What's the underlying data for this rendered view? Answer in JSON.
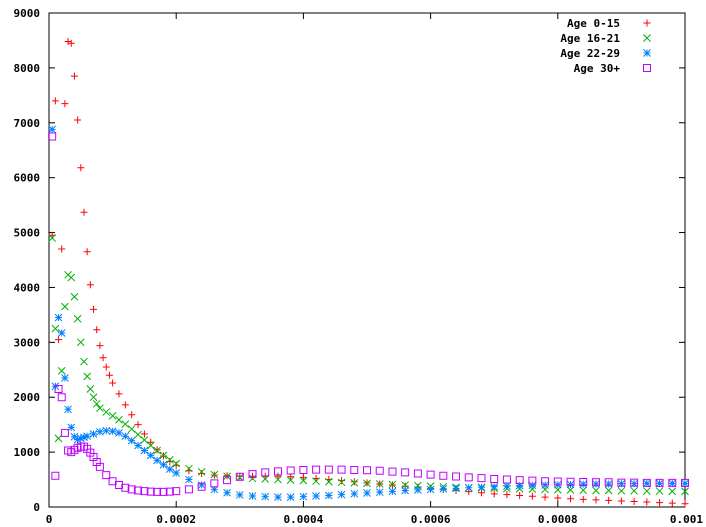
{
  "chart_data": {
    "type": "scatter",
    "title": "",
    "xlabel": "",
    "ylabel": "",
    "xlim": [
      0,
      0.001
    ],
    "ylim": [
      0,
      9000
    ],
    "grid": false,
    "legend_position": "top-right",
    "x_ticks": [
      "0",
      "0.0002",
      "0.0004",
      "0.0006",
      "0.0008",
      "0.001"
    ],
    "x_tick_values": [
      0,
      0.0002,
      0.0004,
      0.0006,
      0.0008,
      0.001
    ],
    "y_ticks": [
      "0",
      "1000",
      "2000",
      "3000",
      "4000",
      "5000",
      "6000",
      "7000",
      "8000",
      "9000"
    ],
    "y_tick_values": [
      0,
      1000,
      2000,
      3000,
      4000,
      5000,
      6000,
      7000,
      8000,
      9000
    ],
    "series": [
      {
        "name": "Age 0-15",
        "color": "#ff0000",
        "marker": "plus",
        "points": [
          [
            5e-06,
            4950
          ],
          [
            1e-05,
            7400
          ],
          [
            1.5e-05,
            3050
          ],
          [
            2e-05,
            4700
          ],
          [
            2.5e-05,
            7350
          ],
          [
            3e-05,
            8480
          ],
          [
            3.5e-05,
            8450
          ],
          [
            4e-05,
            7850
          ],
          [
            4.5e-05,
            7050
          ],
          [
            5e-05,
            6180
          ],
          [
            5.5e-05,
            5370
          ],
          [
            6e-05,
            4650
          ],
          [
            6.5e-05,
            4050
          ],
          [
            7e-05,
            3600
          ],
          [
            7.5e-05,
            3230
          ],
          [
            8e-05,
            2940
          ],
          [
            8.5e-05,
            2720
          ],
          [
            9e-05,
            2550
          ],
          [
            9.5e-05,
            2400
          ],
          [
            0.0001,
            2260
          ],
          [
            0.00011,
            2060
          ],
          [
            0.00012,
            1860
          ],
          [
            0.00013,
            1680
          ],
          [
            0.00014,
            1500
          ],
          [
            0.00015,
            1330
          ],
          [
            0.00016,
            1180
          ],
          [
            0.00017,
            1040
          ],
          [
            0.00018,
            930
          ],
          [
            0.00019,
            830
          ],
          [
            0.0002,
            760
          ],
          [
            0.00022,
            660
          ],
          [
            0.00024,
            610
          ],
          [
            0.00026,
            580
          ],
          [
            0.00028,
            570
          ],
          [
            0.0003,
            560
          ],
          [
            0.00032,
            560
          ],
          [
            0.00034,
            560
          ],
          [
            0.00036,
            560
          ],
          [
            0.00038,
            550
          ],
          [
            0.0004,
            540
          ],
          [
            0.00042,
            520
          ],
          [
            0.00044,
            500
          ],
          [
            0.00046,
            480
          ],
          [
            0.00048,
            460
          ],
          [
            0.0005,
            440
          ],
          [
            0.00052,
            420
          ],
          [
            0.00054,
            400
          ],
          [
            0.00056,
            380
          ],
          [
            0.00058,
            360
          ],
          [
            0.0006,
            340
          ],
          [
            0.00062,
            320
          ],
          [
            0.00064,
            300
          ],
          [
            0.00066,
            280
          ],
          [
            0.00068,
            260
          ],
          [
            0.0007,
            240
          ],
          [
            0.00072,
            225
          ],
          [
            0.00074,
            210
          ],
          [
            0.00076,
            195
          ],
          [
            0.00078,
            180
          ],
          [
            0.0008,
            165
          ],
          [
            0.00082,
            150
          ],
          [
            0.00084,
            140
          ],
          [
            0.00086,
            130
          ],
          [
            0.00088,
            120
          ],
          [
            0.0009,
            110
          ],
          [
            0.00092,
            100
          ],
          [
            0.00094,
            90
          ],
          [
            0.00096,
            80
          ],
          [
            0.00098,
            70
          ],
          [
            0.001,
            60
          ]
        ]
      },
      {
        "name": "Age 16-21",
        "color": "#00b000",
        "marker": "cross",
        "points": [
          [
            5e-06,
            4900
          ],
          [
            1e-05,
            3250
          ],
          [
            1.5e-05,
            1250
          ],
          [
            2e-05,
            2480
          ],
          [
            2.5e-05,
            3650
          ],
          [
            3e-05,
            4230
          ],
          [
            3.5e-05,
            4180
          ],
          [
            4e-05,
            3830
          ],
          [
            4.5e-05,
            3430
          ],
          [
            5e-05,
            3000
          ],
          [
            5.5e-05,
            2650
          ],
          [
            6e-05,
            2380
          ],
          [
            6.5e-05,
            2150
          ],
          [
            7e-05,
            2000
          ],
          [
            7.5e-05,
            1880
          ],
          [
            8e-05,
            1800
          ],
          [
            9e-05,
            1730
          ],
          [
            0.0001,
            1660
          ],
          [
            0.00011,
            1590
          ],
          [
            0.00012,
            1510
          ],
          [
            0.00013,
            1420
          ],
          [
            0.00014,
            1320
          ],
          [
            0.00015,
            1220
          ],
          [
            0.00016,
            1120
          ],
          [
            0.00017,
            1030
          ],
          [
            0.00018,
            940
          ],
          [
            0.00019,
            860
          ],
          [
            0.0002,
            790
          ],
          [
            0.00022,
            700
          ],
          [
            0.00024,
            640
          ],
          [
            0.00026,
            590
          ],
          [
            0.00028,
            560
          ],
          [
            0.0003,
            540
          ],
          [
            0.00032,
            520
          ],
          [
            0.00034,
            510
          ],
          [
            0.00036,
            500
          ],
          [
            0.00038,
            490
          ],
          [
            0.0004,
            480
          ],
          [
            0.00042,
            470
          ],
          [
            0.00044,
            460
          ],
          [
            0.00046,
            450
          ],
          [
            0.00048,
            440
          ],
          [
            0.0005,
            430
          ],
          [
            0.00052,
            420
          ],
          [
            0.00054,
            410
          ],
          [
            0.00056,
            400
          ],
          [
            0.00058,
            390
          ],
          [
            0.0006,
            380
          ],
          [
            0.00062,
            370
          ],
          [
            0.00064,
            360
          ],
          [
            0.00066,
            350
          ],
          [
            0.00068,
            345
          ],
          [
            0.0007,
            340
          ],
          [
            0.00072,
            335
          ],
          [
            0.00074,
            330
          ],
          [
            0.00076,
            325
          ],
          [
            0.00078,
            320
          ],
          [
            0.0008,
            315
          ],
          [
            0.00082,
            310
          ],
          [
            0.00084,
            305
          ],
          [
            0.00086,
            300
          ],
          [
            0.00088,
            300
          ],
          [
            0.0009,
            295
          ],
          [
            0.00092,
            295
          ],
          [
            0.00094,
            290
          ],
          [
            0.00096,
            290
          ],
          [
            0.00098,
            285
          ],
          [
            0.001,
            285
          ]
        ]
      },
      {
        "name": "Age 22-29",
        "color": "#0080ff",
        "marker": "star",
        "points": [
          [
            5e-06,
            6880
          ],
          [
            1e-05,
            2200
          ],
          [
            1.5e-05,
            3450
          ],
          [
            2e-05,
            3170
          ],
          [
            2.5e-05,
            2350
          ],
          [
            3e-05,
            1780
          ],
          [
            3.5e-05,
            1450
          ],
          [
            4e-05,
            1280
          ],
          [
            4.5e-05,
            1230
          ],
          [
            5e-05,
            1250
          ],
          [
            5.5e-05,
            1270
          ],
          [
            6e-05,
            1290
          ],
          [
            7e-05,
            1330
          ],
          [
            8e-05,
            1370
          ],
          [
            9e-05,
            1390
          ],
          [
            0.0001,
            1380
          ],
          [
            0.00011,
            1350
          ],
          [
            0.00012,
            1290
          ],
          [
            0.00013,
            1210
          ],
          [
            0.00014,
            1120
          ],
          [
            0.00015,
            1030
          ],
          [
            0.00016,
            940
          ],
          [
            0.00017,
            850
          ],
          [
            0.00018,
            770
          ],
          [
            0.00019,
            690
          ],
          [
            0.0002,
            620
          ],
          [
            0.00022,
            500
          ],
          [
            0.00024,
            400
          ],
          [
            0.00026,
            320
          ],
          [
            0.00028,
            260
          ],
          [
            0.0003,
            220
          ],
          [
            0.00032,
            200
          ],
          [
            0.00034,
            190
          ],
          [
            0.00036,
            180
          ],
          [
            0.00038,
            180
          ],
          [
            0.0004,
            190
          ],
          [
            0.00042,
            200
          ],
          [
            0.00044,
            210
          ],
          [
            0.00046,
            225
          ],
          [
            0.00048,
            240
          ],
          [
            0.0005,
            255
          ],
          [
            0.00052,
            270
          ],
          [
            0.00054,
            285
          ],
          [
            0.00056,
            300
          ],
          [
            0.00058,
            310
          ],
          [
            0.0006,
            320
          ],
          [
            0.00062,
            330
          ],
          [
            0.00064,
            340
          ],
          [
            0.00066,
            350
          ],
          [
            0.00068,
            360
          ],
          [
            0.0007,
            370
          ],
          [
            0.00072,
            380
          ],
          [
            0.00074,
            390
          ],
          [
            0.00076,
            395
          ],
          [
            0.00078,
            400
          ],
          [
            0.0008,
            405
          ],
          [
            0.00082,
            410
          ],
          [
            0.00084,
            415
          ],
          [
            0.00086,
            420
          ],
          [
            0.00088,
            420
          ],
          [
            0.0009,
            425
          ],
          [
            0.00092,
            425
          ],
          [
            0.00094,
            430
          ],
          [
            0.00096,
            430
          ],
          [
            0.00098,
            430
          ],
          [
            0.001,
            430
          ]
        ]
      },
      {
        "name": "Age 30+",
        "color": "#c000ff",
        "marker": "square",
        "points": [
          [
            5e-06,
            6750
          ],
          [
            1e-05,
            570
          ],
          [
            1.5e-05,
            2150
          ],
          [
            2e-05,
            2000
          ],
          [
            2.5e-05,
            1350
          ],
          [
            3e-05,
            1030
          ],
          [
            3.5e-05,
            1000
          ],
          [
            4e-05,
            1040
          ],
          [
            4.5e-05,
            1080
          ],
          [
            5e-05,
            1100
          ],
          [
            5.5e-05,
            1100
          ],
          [
            6e-05,
            1060
          ],
          [
            6.5e-05,
            990
          ],
          [
            7e-05,
            910
          ],
          [
            7.5e-05,
            820
          ],
          [
            8e-05,
            730
          ],
          [
            9e-05,
            580
          ],
          [
            0.0001,
            470
          ],
          [
            0.00011,
            400
          ],
          [
            0.00012,
            350
          ],
          [
            0.00013,
            320
          ],
          [
            0.00014,
            300
          ],
          [
            0.00015,
            290
          ],
          [
            0.00016,
            280
          ],
          [
            0.00017,
            275
          ],
          [
            0.00018,
            275
          ],
          [
            0.00019,
            280
          ],
          [
            0.0002,
            290
          ],
          [
            0.00022,
            320
          ],
          [
            0.00024,
            370
          ],
          [
            0.00026,
            430
          ],
          [
            0.00028,
            490
          ],
          [
            0.0003,
            550
          ],
          [
            0.00032,
            600
          ],
          [
            0.00034,
            630
          ],
          [
            0.00036,
            650
          ],
          [
            0.00038,
            665
          ],
          [
            0.0004,
            675
          ],
          [
            0.00042,
            680
          ],
          [
            0.00044,
            680
          ],
          [
            0.00046,
            680
          ],
          [
            0.00048,
            675
          ],
          [
            0.0005,
            670
          ],
          [
            0.00052,
            660
          ],
          [
            0.00054,
            645
          ],
          [
            0.00056,
            630
          ],
          [
            0.00058,
            610
          ],
          [
            0.0006,
            590
          ],
          [
            0.00062,
            570
          ],
          [
            0.00064,
            555
          ],
          [
            0.00066,
            540
          ],
          [
            0.00068,
            525
          ],
          [
            0.0007,
            510
          ],
          [
            0.00072,
            500
          ],
          [
            0.00074,
            490
          ],
          [
            0.00076,
            480
          ],
          [
            0.00078,
            470
          ],
          [
            0.0008,
            465
          ],
          [
            0.00082,
            460
          ],
          [
            0.00084,
            455
          ],
          [
            0.00086,
            450
          ],
          [
            0.00088,
            450
          ],
          [
            0.0009,
            445
          ],
          [
            0.00092,
            445
          ],
          [
            0.00094,
            440
          ],
          [
            0.00096,
            440
          ],
          [
            0.00098,
            440
          ],
          [
            0.001,
            440
          ]
        ]
      }
    ]
  }
}
